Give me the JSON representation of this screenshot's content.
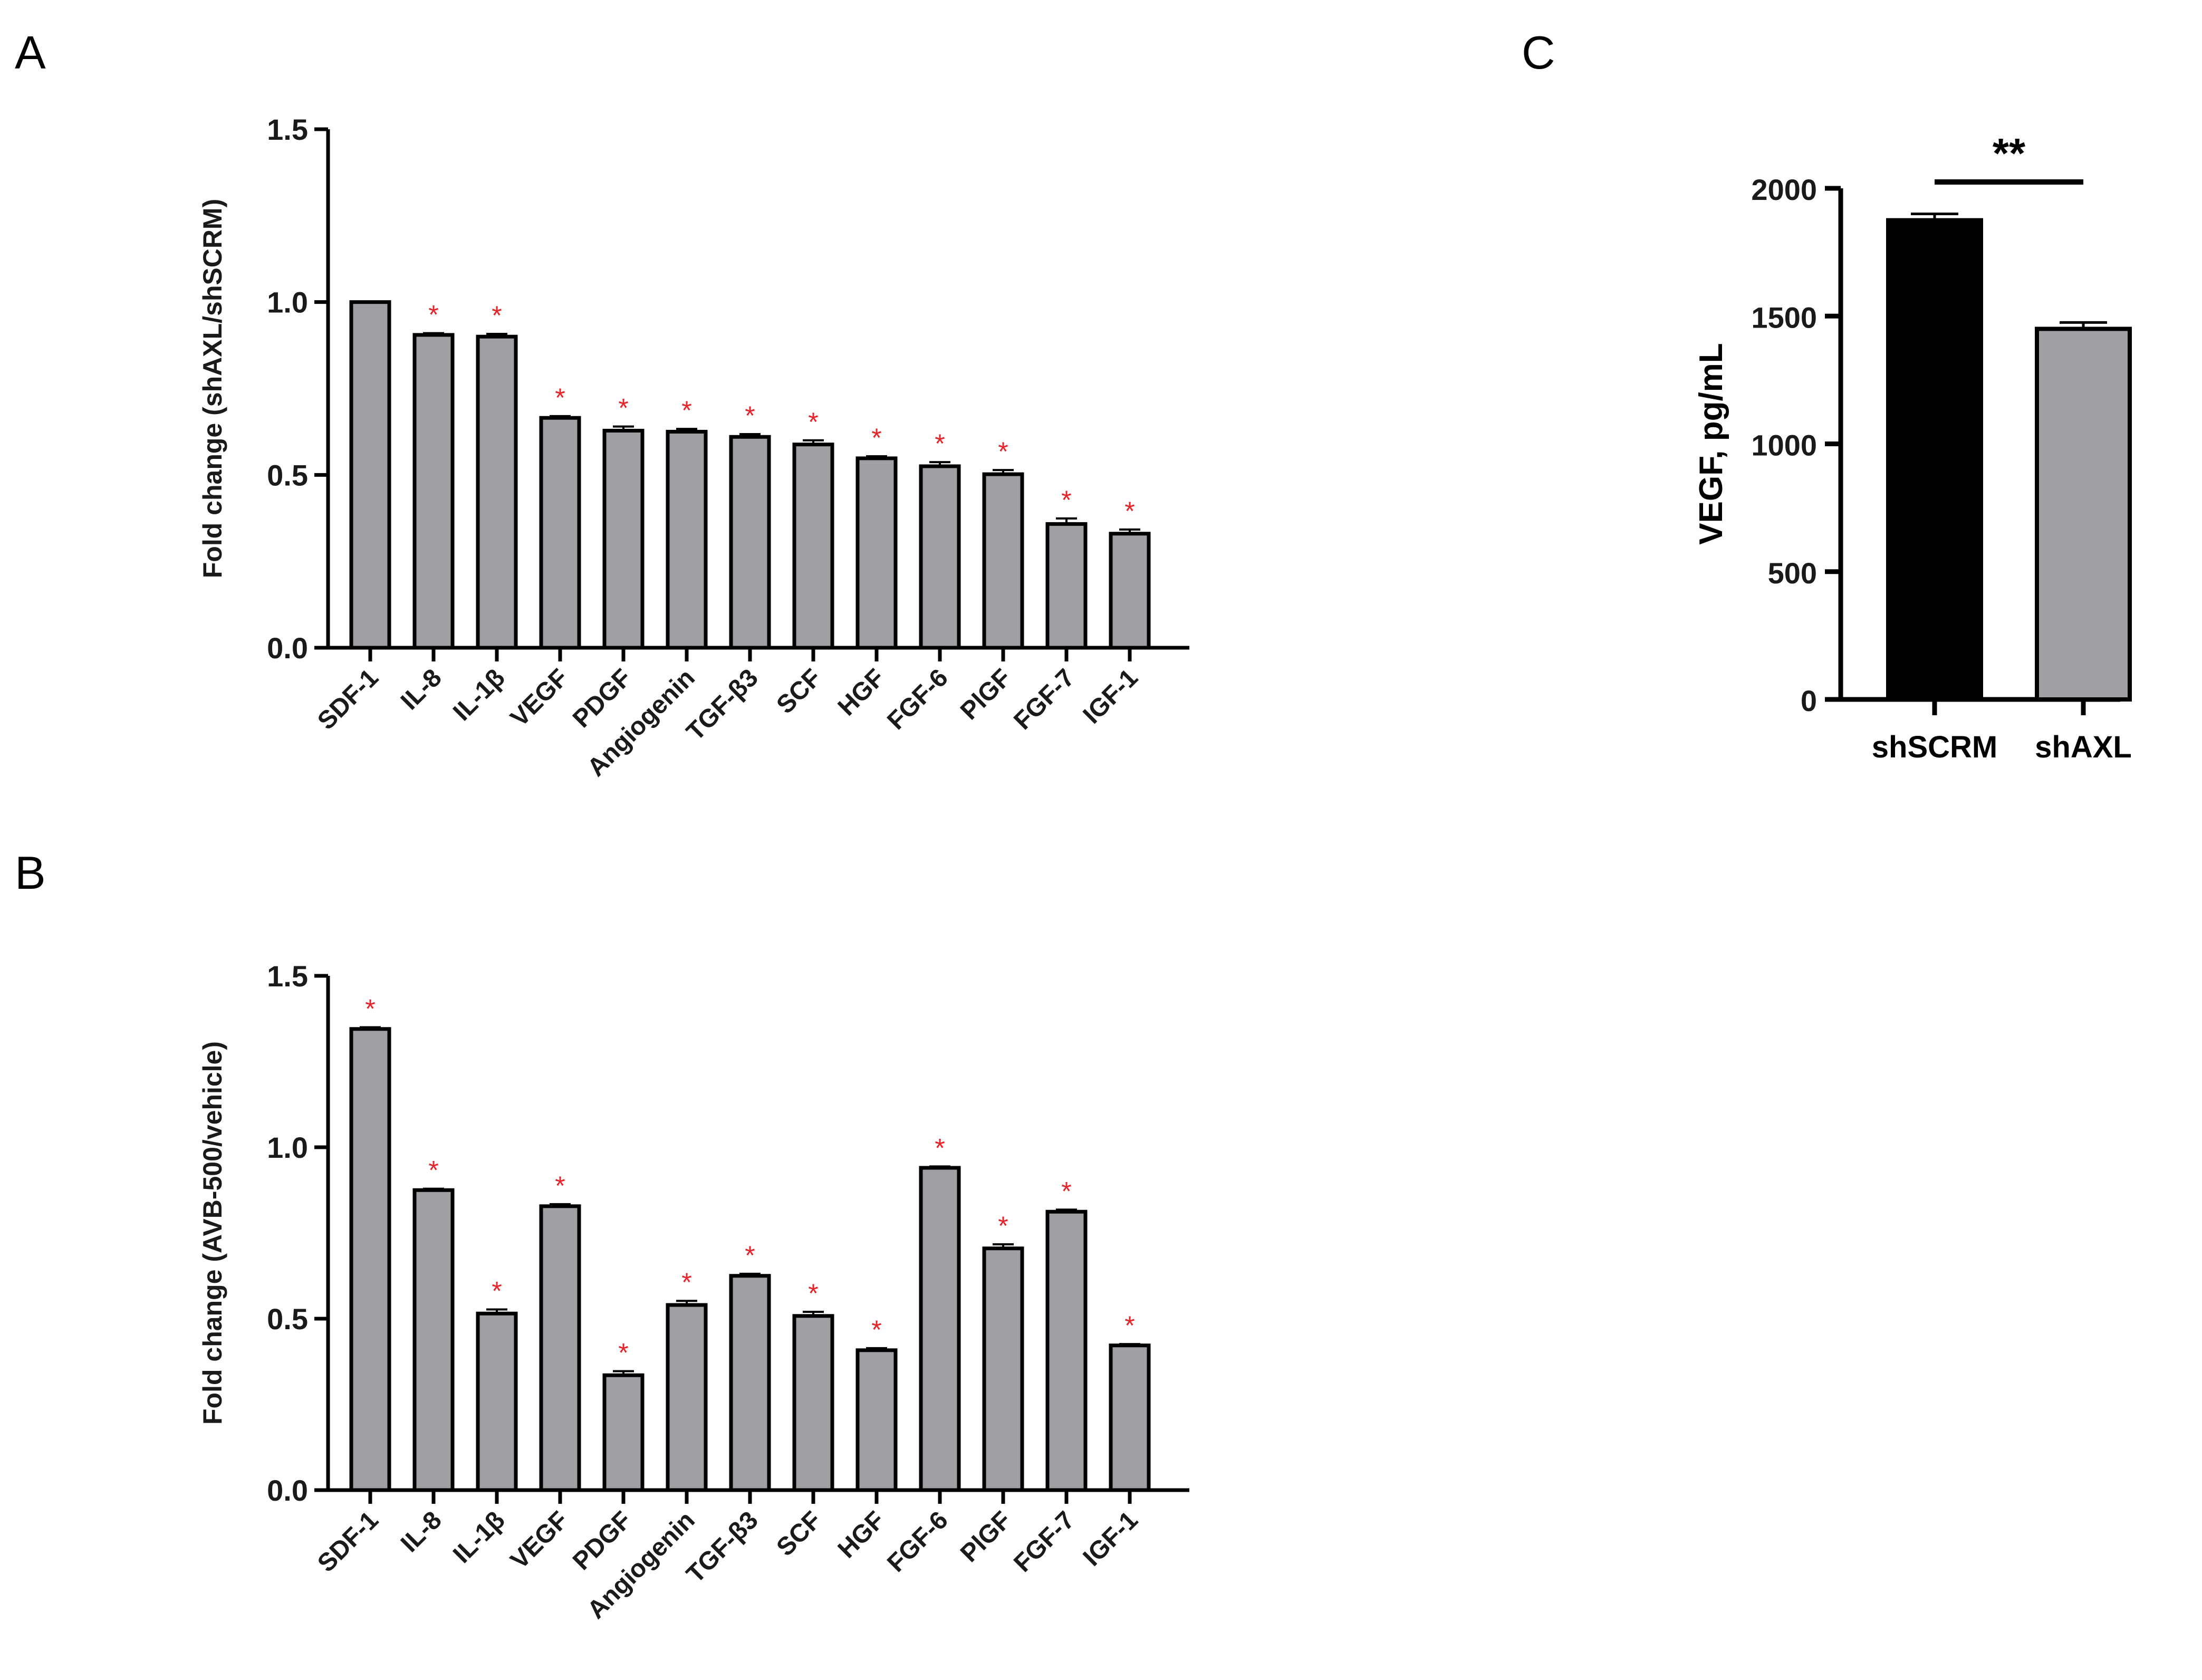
{
  "colors": {
    "bar_gray": "#a0a0a4",
    "bar_black": "#000000",
    "star_red": "#e8242a",
    "axis": "#000000"
  },
  "chart_data": [
    {
      "panel": "A",
      "type": "bar",
      "ylabel": "Fold change (shAXL/shSCRM)",
      "ylim": [
        0,
        1.5
      ],
      "yticks": [
        "0.0",
        "0.5",
        "1.0",
        "1.5"
      ],
      "categories": [
        "SDF-1",
        "IL-8",
        "IL-1β",
        "VEGF",
        "PDGF",
        "Angiogenin",
        "TGF-β3",
        "SCF",
        "HGF",
        "FGF-6",
        "PlGF",
        "FGF-7",
        "IGF-1"
      ],
      "values": [
        1.0,
        0.905,
        0.9,
        0.665,
        0.628,
        0.625,
        0.61,
        0.588,
        0.548,
        0.525,
        0.502,
        0.358,
        0.33
      ],
      "errors": [
        0,
        0.005,
        0.008,
        0.005,
        0.012,
        0.008,
        0.008,
        0.012,
        0.006,
        0.012,
        0.012,
        0.016,
        0.012
      ],
      "significant": [
        false,
        true,
        true,
        true,
        true,
        true,
        true,
        true,
        true,
        true,
        true,
        true,
        true
      ],
      "marker": "*"
    },
    {
      "panel": "B",
      "type": "bar",
      "ylabel": "Fold change (AVB-500/vehicle)",
      "ylim": [
        0,
        1.5
      ],
      "yticks": [
        "0.0",
        "0.5",
        "1.0",
        "1.5"
      ],
      "categories": [
        "SDF-1",
        "IL-8",
        "IL-1β",
        "VEGF",
        "PDGF",
        "Angiogenin",
        "TGF-β3",
        "SCF",
        "HGF",
        "FGF-6",
        "PlGF",
        "FGF-7",
        "IGF-1"
      ],
      "values": [
        1.345,
        0.875,
        0.515,
        0.828,
        0.335,
        0.54,
        0.625,
        0.508,
        0.408,
        0.94,
        0.705,
        0.812,
        0.422
      ],
      "errors": [
        0.005,
        0.004,
        0.012,
        0.006,
        0.012,
        0.012,
        0.006,
        0.012,
        0.006,
        0.004,
        0.012,
        0.006,
        0.004
      ],
      "significant": [
        true,
        true,
        true,
        true,
        true,
        true,
        true,
        true,
        true,
        true,
        true,
        true,
        true
      ],
      "marker": "*"
    },
    {
      "panel": "C",
      "type": "bar",
      "ylabel": "VEGF, pg/mL",
      "ylim": [
        0,
        2000
      ],
      "yticks": [
        "0",
        "500",
        "1000",
        "1500",
        "2000"
      ],
      "categories": [
        "shSCRM",
        "shAXL"
      ],
      "values": [
        1875,
        1450
      ],
      "errors": [
        25,
        25
      ],
      "bar_colors": [
        "#000000",
        "#a0a0a4"
      ],
      "significance": "**"
    }
  ]
}
